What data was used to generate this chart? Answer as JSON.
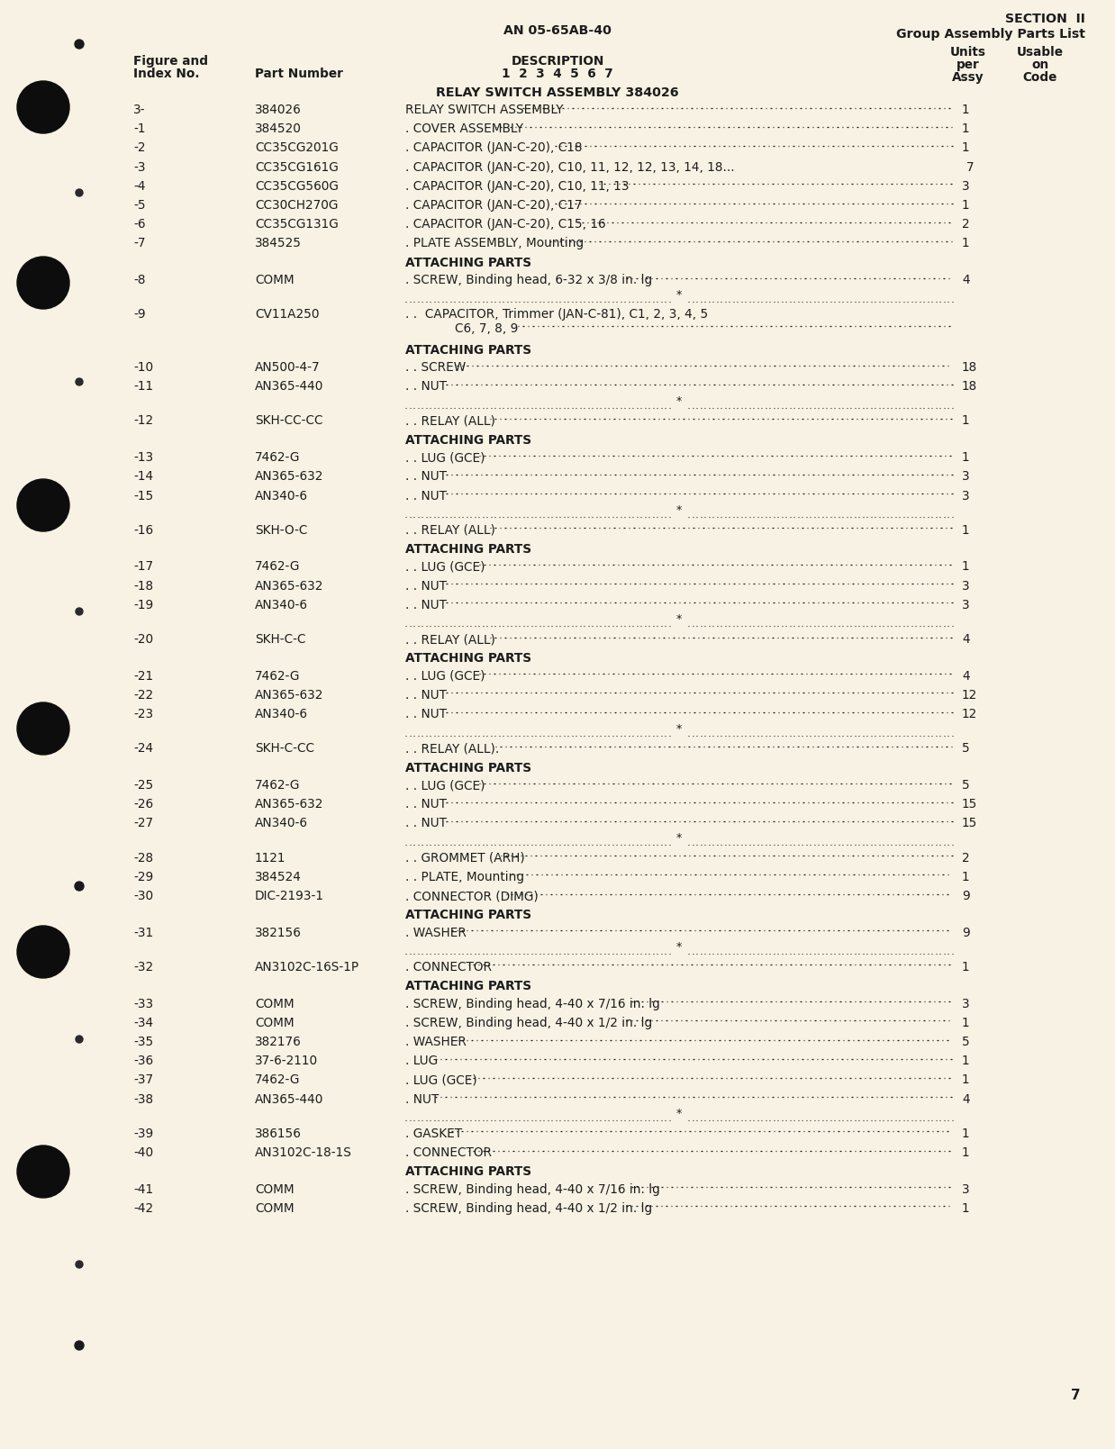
{
  "bg_color": "#f7f2e3",
  "page_number": "7",
  "header_center": "AN 05-65AB-40",
  "header_right_line1": "SECTION  II",
  "header_right_line2": "Group Assembly Parts List",
  "section_title": "RELAY SWITCH ASSEMBLY 384026",
  "rows": [
    {
      "index": "3-",
      "part": "384026",
      "desc": "RELAY SWITCH ASSEMBLY",
      "dots": true,
      "qty": "1",
      "type": "normal",
      "line2": ""
    },
    {
      "index": "-1",
      "part": "384520",
      "desc": ". COVER ASSEMBLY",
      "dots": true,
      "qty": "1",
      "type": "normal",
      "line2": ""
    },
    {
      "index": "-2",
      "part": "CC35CG201G",
      "desc": ". CAPACITOR (JAN-C-20), C18",
      "dots": true,
      "qty": "1",
      "type": "normal",
      "line2": ""
    },
    {
      "index": "-3",
      "part": "CC35CG161G",
      "desc": ". CAPACITOR (JAN-C-20), C10, 11, 12, 12, 13, 14, 18...",
      "dots": false,
      "qty": "7",
      "type": "normal",
      "line2": ""
    },
    {
      "index": "-4",
      "part": "CC35CG560G",
      "desc": ". CAPACITOR (JAN-C-20), C10, 11, 13",
      "dots": true,
      "qty": "3",
      "type": "normal",
      "line2": ""
    },
    {
      "index": "-5",
      "part": "CC30CH270G",
      "desc": ". CAPACITOR (JAN-C-20), C17",
      "dots": true,
      "qty": "1",
      "type": "normal",
      "line2": ""
    },
    {
      "index": "-6",
      "part": "CC35CG131G",
      "desc": ". CAPACITOR (JAN-C-20), C15, 16",
      "dots": true,
      "qty": "2",
      "type": "normal",
      "line2": ""
    },
    {
      "index": "-7",
      "part": "384525",
      "desc": ". PLATE ASSEMBLY, Mounting",
      "dots": true,
      "qty": "1",
      "type": "normal",
      "line2": ""
    },
    {
      "index": "",
      "part": "",
      "desc": "ATTACHING PARTS",
      "dots": false,
      "qty": "",
      "type": "section",
      "line2": ""
    },
    {
      "index": "-8",
      "part": "COMM",
      "desc": ". SCREW, Binding head, 6-32 x 3/8 in. lg",
      "dots": true,
      "qty": "4",
      "type": "normal",
      "line2": ""
    },
    {
      "index": "",
      "part": "",
      "desc": "",
      "dots": false,
      "qty": "",
      "type": "separator",
      "line2": ""
    },
    {
      "index": "-9",
      "part": "CV11A250",
      "desc": ". .  CAPACITOR, Trimmer (JAN-C-81), C1, 2, 3, 4, 5",
      "dots": false,
      "qty": "",
      "type": "normal",
      "line2": "            C6, 7, 8, 9"
    },
    {
      "index": "",
      "part": "",
      "desc": "ATTACHING PARTS",
      "dots": false,
      "qty": "",
      "type": "section",
      "line2": ""
    },
    {
      "index": "-10",
      "part": "AN500-4-7",
      "desc": ". . SCREW",
      "dots": true,
      "qty": "18",
      "type": "normal",
      "line2": ""
    },
    {
      "index": "-11",
      "part": "AN365-440",
      "desc": ". . NUT",
      "dots": true,
      "qty": "18",
      "type": "normal",
      "line2": ""
    },
    {
      "index": "",
      "part": "",
      "desc": "",
      "dots": false,
      "qty": "",
      "type": "separator",
      "line2": ""
    },
    {
      "index": "-12",
      "part": "SKH-CC-CC",
      "desc": ". . RELAY (ALL)",
      "dots": true,
      "qty": "1",
      "type": "normal",
      "line2": ""
    },
    {
      "index": "",
      "part": "",
      "desc": "ATTACHING PARTS",
      "dots": false,
      "qty": "",
      "type": "section",
      "line2": ""
    },
    {
      "index": "-13",
      "part": "7462-G",
      "desc": ". . LUG (GCE)",
      "dots": true,
      "qty": "1",
      "type": "normal",
      "line2": ""
    },
    {
      "index": "-14",
      "part": "AN365-632",
      "desc": ". . NUT",
      "dots": true,
      "qty": "3",
      "type": "normal",
      "line2": ""
    },
    {
      "index": "-15",
      "part": "AN340-6",
      "desc": ". . NUT",
      "dots": true,
      "qty": "3",
      "type": "normal",
      "line2": ""
    },
    {
      "index": "",
      "part": "",
      "desc": "",
      "dots": false,
      "qty": "",
      "type": "separator",
      "line2": ""
    },
    {
      "index": "-16",
      "part": "SKH-O-C",
      "desc": ". . RELAY (ALL)",
      "dots": true,
      "qty": "1",
      "type": "normal",
      "line2": ""
    },
    {
      "index": "",
      "part": "",
      "desc": "ATTACHING PARTS",
      "dots": false,
      "qty": "",
      "type": "section",
      "line2": ""
    },
    {
      "index": "-17",
      "part": "7462-G",
      "desc": ". . LUG (GCE)",
      "dots": true,
      "qty": "1",
      "type": "normal",
      "line2": ""
    },
    {
      "index": "-18",
      "part": "AN365-632",
      "desc": ". . NUT",
      "dots": true,
      "qty": "3",
      "type": "normal",
      "line2": ""
    },
    {
      "index": "-19",
      "part": "AN340-6",
      "desc": ". . NUT",
      "dots": true,
      "qty": "3",
      "type": "normal",
      "line2": ""
    },
    {
      "index": "",
      "part": "",
      "desc": "",
      "dots": false,
      "qty": "",
      "type": "separator",
      "line2": ""
    },
    {
      "index": "-20",
      "part": "SKH-C-C",
      "desc": ". . RELAY (ALL)",
      "dots": true,
      "qty": "4",
      "type": "normal",
      "line2": ""
    },
    {
      "index": "",
      "part": "",
      "desc": "ATTACHING PARTS",
      "dots": false,
      "qty": "",
      "type": "section",
      "line2": ""
    },
    {
      "index": "-21",
      "part": "7462-G",
      "desc": ". . LUG (GCE)",
      "dots": true,
      "qty": "4",
      "type": "normal",
      "line2": ""
    },
    {
      "index": "-22",
      "part": "AN365-632",
      "desc": ". . NUT",
      "dots": true,
      "qty": "12",
      "type": "normal",
      "line2": ""
    },
    {
      "index": "-23",
      "part": "AN340-6",
      "desc": ". . NUT",
      "dots": true,
      "qty": "12",
      "type": "normal",
      "line2": ""
    },
    {
      "index": "",
      "part": "",
      "desc": "",
      "dots": false,
      "qty": "",
      "type": "separator",
      "line2": ""
    },
    {
      "index": "-24",
      "part": "SKH-C-CC",
      "desc": ". . RELAY (ALL).",
      "dots": true,
      "qty": "5",
      "type": "normal",
      "line2": ""
    },
    {
      "index": "",
      "part": "",
      "desc": "ATTACHING PARTS",
      "dots": false,
      "qty": "",
      "type": "section",
      "line2": ""
    },
    {
      "index": "-25",
      "part": "7462-G",
      "desc": ". . LUG (GCE)",
      "dots": true,
      "qty": "5",
      "type": "normal",
      "line2": ""
    },
    {
      "index": "-26",
      "part": "AN365-632",
      "desc": ". . NUT",
      "dots": true,
      "qty": "15",
      "type": "normal",
      "line2": ""
    },
    {
      "index": "-27",
      "part": "AN340-6",
      "desc": ". . NUT",
      "dots": true,
      "qty": "15",
      "type": "normal",
      "line2": ""
    },
    {
      "index": "",
      "part": "",
      "desc": "",
      "dots": false,
      "qty": "",
      "type": "separator",
      "line2": ""
    },
    {
      "index": "-28",
      "part": "1121",
      "desc": ". . GROMMET (ARH)",
      "dots": true,
      "qty": "2",
      "type": "normal",
      "line2": ""
    },
    {
      "index": "-29",
      "part": "384524",
      "desc": ". . PLATE, Mounting",
      "dots": true,
      "qty": "1",
      "type": "normal",
      "line2": ""
    },
    {
      "index": "-30",
      "part": "DIC-2193-1",
      "desc": ". CONNECTOR (DIMG)",
      "dots": true,
      "qty": "9",
      "type": "normal",
      "line2": ""
    },
    {
      "index": "",
      "part": "",
      "desc": "ATTACHING PARTS",
      "dots": false,
      "qty": "",
      "type": "section",
      "line2": ""
    },
    {
      "index": "-31",
      "part": "382156",
      "desc": ". WASHER",
      "dots": true,
      "qty": "9",
      "type": "normal",
      "line2": ""
    },
    {
      "index": "",
      "part": "",
      "desc": "",
      "dots": false,
      "qty": "",
      "type": "separator",
      "line2": ""
    },
    {
      "index": "-32",
      "part": "AN3102C-16S-1P",
      "desc": ". CONNECTOR",
      "dots": true,
      "qty": "1",
      "type": "normal",
      "line2": ""
    },
    {
      "index": "",
      "part": "",
      "desc": "ATTACHING PARTS",
      "dots": false,
      "qty": "",
      "type": "section",
      "line2": ""
    },
    {
      "index": "-33",
      "part": "COMM",
      "desc": ". SCREW, Binding head, 4-40 x 7/16 in. lg",
      "dots": true,
      "qty": "3",
      "type": "normal",
      "line2": ""
    },
    {
      "index": "-34",
      "part": "COMM",
      "desc": ". SCREW, Binding head, 4-40 x 1/2 in. lg",
      "dots": true,
      "qty": "1",
      "type": "normal",
      "line2": ""
    },
    {
      "index": "-35",
      "part": "382176",
      "desc": ". WASHER",
      "dots": true,
      "qty": "5",
      "type": "normal",
      "line2": ""
    },
    {
      "index": "-36",
      "part": "37-6-2110",
      "desc": ". LUG",
      "dots": true,
      "qty": "1",
      "type": "normal",
      "line2": ""
    },
    {
      "index": "-37",
      "part": "7462-G",
      "desc": ". LUG (GCE)",
      "dots": true,
      "qty": "1",
      "type": "normal",
      "line2": ""
    },
    {
      "index": "-38",
      "part": "AN365-440",
      "desc": ". NUT",
      "dots": true,
      "qty": "4",
      "type": "normal",
      "line2": ""
    },
    {
      "index": "",
      "part": "",
      "desc": "",
      "dots": false,
      "qty": "",
      "type": "separator",
      "line2": ""
    },
    {
      "index": "-39",
      "part": "386156",
      "desc": ". GASKET",
      "dots": true,
      "qty": "1",
      "type": "normal",
      "line2": ""
    },
    {
      "index": "-40",
      "part": "AN3102C-18-1S",
      "desc": ". CONNECTOR",
      "dots": true,
      "qty": "1",
      "type": "normal",
      "line2": ""
    },
    {
      "index": "",
      "part": "",
      "desc": "ATTACHING PARTS",
      "dots": false,
      "qty": "",
      "type": "section",
      "line2": ""
    },
    {
      "index": "-41",
      "part": "COMM",
      "desc": ". SCREW, Binding head, 4-40 x 7/16 in. lg",
      "dots": true,
      "qty": "3",
      "type": "normal",
      "line2": ""
    },
    {
      "index": "-42",
      "part": "COMM",
      "desc": ". SCREW, Binding head, 4-40 x 1/2 in. lg",
      "dots": true,
      "qty": "1",
      "type": "normal",
      "line2": ""
    }
  ]
}
